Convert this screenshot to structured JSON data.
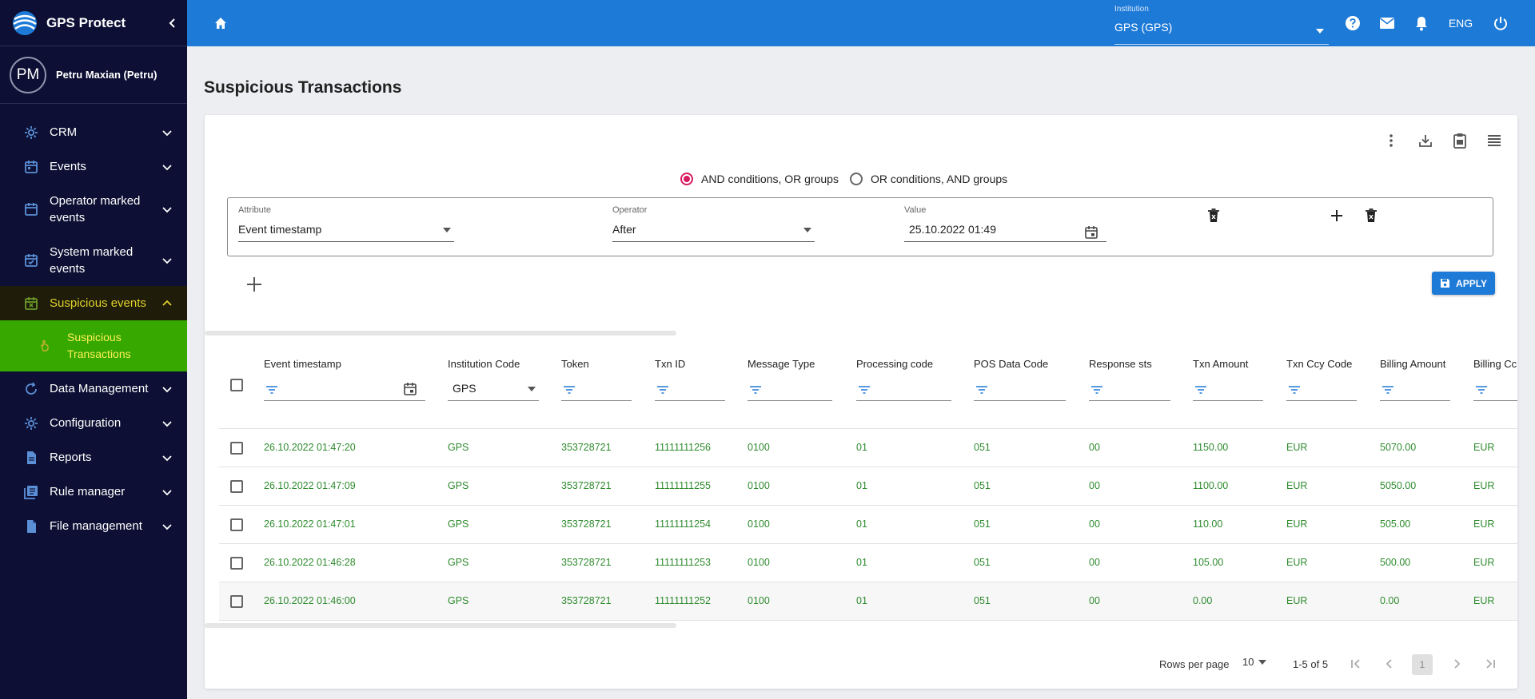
{
  "app": {
    "title": "GPS Protect"
  },
  "user": {
    "initials": "PM",
    "name": "Petru Maxian (Petru)"
  },
  "sidebar": {
    "items": [
      {
        "label": "CRM",
        "icon": "gear-icon"
      },
      {
        "label": "Events",
        "icon": "calendar-icon"
      },
      {
        "label": "Operator marked events",
        "icon": "calendar-icon"
      },
      {
        "label": "System marked events",
        "icon": "calendar-check-icon"
      },
      {
        "label": "Suspicious events",
        "icon": "calendar-x-icon"
      },
      {
        "label": "Data Management",
        "icon": "refresh-icon"
      },
      {
        "label": "Configuration",
        "icon": "gear-icon"
      },
      {
        "label": "Reports",
        "icon": "document-icon"
      },
      {
        "label": "Rule manager",
        "icon": "library-icon"
      },
      {
        "label": "File management",
        "icon": "file-icon"
      }
    ],
    "subitem": {
      "label": "Suspicious Transactions",
      "icon": "hand-pointer-icon"
    }
  },
  "topbar": {
    "institution_label": "Institution",
    "institution_value": "GPS (GPS)",
    "language": "ENG"
  },
  "page": {
    "title": "Suspicious Transactions"
  },
  "filter": {
    "option_and": "AND conditions, OR groups",
    "option_or": "OR conditions, AND groups",
    "selected": "and",
    "attribute_label": "Attribute",
    "attribute_value": "Event timestamp",
    "operator_label": "Operator",
    "operator_value": "After",
    "value_label": "Value",
    "value_value": "25.10.2022 01:49",
    "apply_label": "APPLY"
  },
  "table": {
    "headers": [
      "Event timestamp",
      "Institution Code",
      "Token",
      "Txn ID",
      "Message Type",
      "Processing code",
      "POS Data Code",
      "Response sts",
      "Txn Amount",
      "Txn Ccy Code",
      "Billing Amount",
      "Billing Cc"
    ],
    "institution_filter": "GPS",
    "rows": [
      [
        "26.10.2022 01:47:20",
        "GPS",
        "353728721",
        "11111111256",
        "0100",
        "01",
        "051",
        "00",
        "1150.00",
        "EUR",
        "5070.00",
        "EUR"
      ],
      [
        "26.10.2022 01:47:09",
        "GPS",
        "353728721",
        "11111111255",
        "0100",
        "01",
        "051",
        "00",
        "1100.00",
        "EUR",
        "5050.00",
        "EUR"
      ],
      [
        "26.10.2022 01:47:01",
        "GPS",
        "353728721",
        "11111111254",
        "0100",
        "01",
        "051",
        "00",
        "110.00",
        "EUR",
        "505.00",
        "EUR"
      ],
      [
        "26.10.2022 01:46:28",
        "GPS",
        "353728721",
        "11111111253",
        "0100",
        "01",
        "051",
        "00",
        "105.00",
        "EUR",
        "500.00",
        "EUR"
      ],
      [
        "26.10.2022 01:46:00",
        "GPS",
        "353728721",
        "11111111252",
        "0100",
        "01",
        "051",
        "00",
        "0.00",
        "EUR",
        "0.00",
        "EUR"
      ]
    ]
  },
  "pagination": {
    "rows_label": "Rows per page",
    "rows_value": "10",
    "range": "1-5 of 5",
    "current": "1"
  },
  "colors": {
    "topbar": "#1e7ad7",
    "sidebar": "#0d1034",
    "active_sub": "#36a800",
    "accent": "#d81b60",
    "cell_text": "#2e8b2e"
  }
}
